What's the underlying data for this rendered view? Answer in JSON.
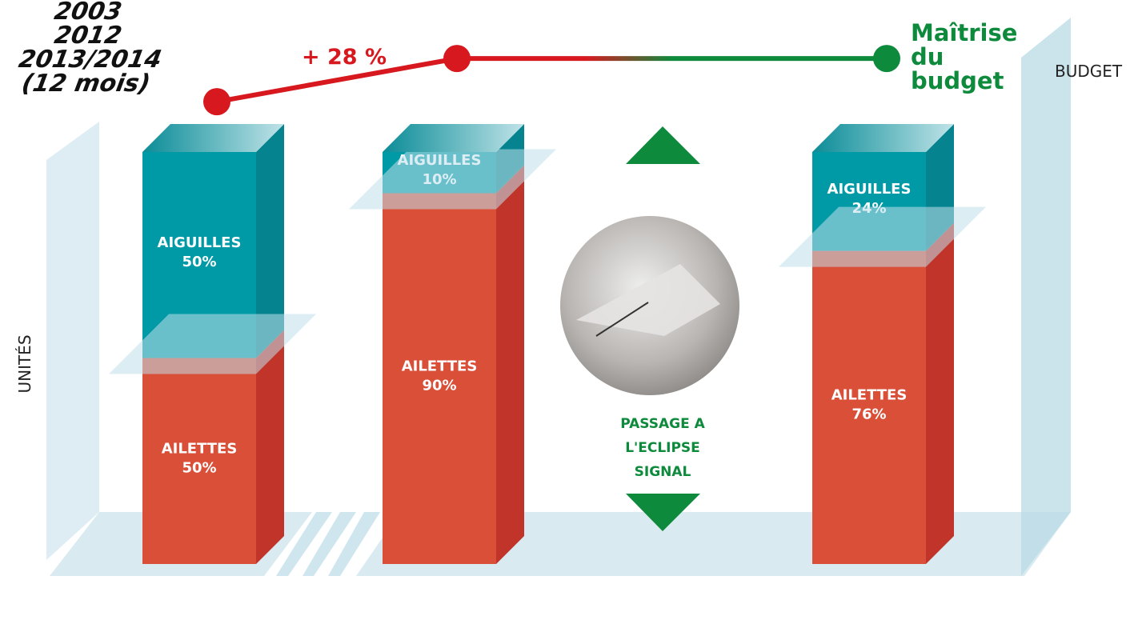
{
  "chart_data": {
    "type": "bar",
    "stacked": true,
    "categories": [
      "2003",
      "2012",
      "2013/2014 (12 mois)"
    ],
    "series": [
      {
        "name": "AILETTES",
        "color": "#d94f38",
        "values": [
          50,
          90,
          76
        ],
        "value_labels": [
          "50%",
          "90%",
          "76%"
        ]
      },
      {
        "name": "AIGUILLES",
        "color": "#009aa6",
        "values": [
          50,
          10,
          24
        ],
        "value_labels": [
          "50%",
          "10%",
          "24%"
        ]
      }
    ],
    "ylim": [
      0,
      100
    ],
    "y_label": "UNITÉS",
    "y2_label": "BUDGET",
    "y2lim": [
      0,
      140
    ],
    "budget": {
      "axis": "y2",
      "values": [
        100,
        128,
        128
      ],
      "colors": [
        "#d7191f",
        "#d7191f",
        "#0e8a3c"
      ]
    },
    "annotations": {
      "increase": "+ 28 %",
      "control": "Maîtrise du budget",
      "switch": "PASSAGE A L'ECLIPSE SIGNAL"
    }
  }
}
